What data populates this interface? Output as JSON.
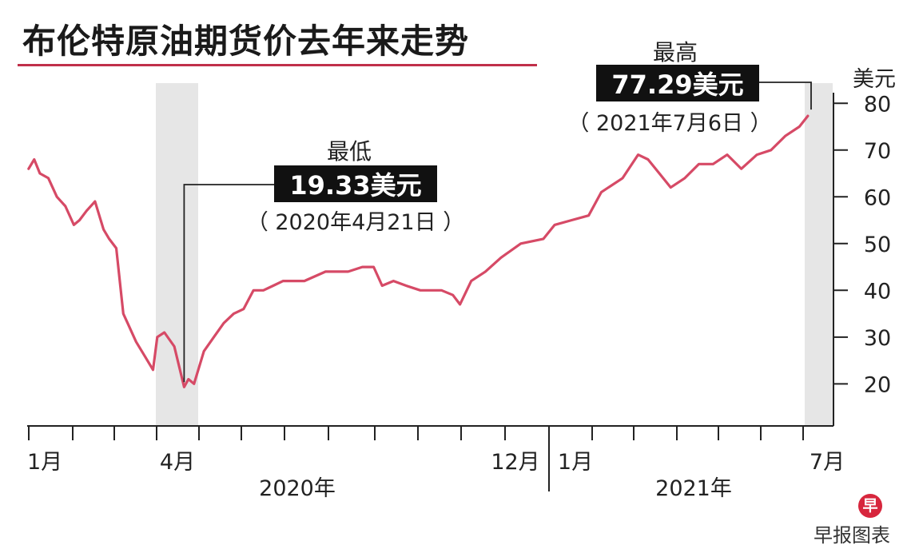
{
  "title": "布伦特原油期货价去年来走势",
  "credit": "早报图表",
  "logo_text": "早",
  "chart_data": {
    "type": "line",
    "title": "布伦特原油期货价去年来走势",
    "ylabel": "美元",
    "ylim": [
      11,
      85
    ],
    "yticks": [
      20,
      30,
      40,
      50,
      60,
      70,
      80
    ],
    "grid": false,
    "x_month_labels": [
      "1月",
      "4月",
      "12月",
      "1月",
      "7月"
    ],
    "x_year_labels": [
      "2020年",
      "2021年"
    ],
    "line_color": "#d64a66",
    "series": [
      {
        "x": [
          "2020-01-02",
          "2020-01-06",
          "2020-01-10",
          "2020-01-16",
          "2020-01-22",
          "2020-01-28",
          "2020-02-03",
          "2020-02-07",
          "2020-02-12",
          "2020-02-18",
          "2020-02-24",
          "2020-02-28",
          "2020-03-04",
          "2020-03-09",
          "2020-03-12",
          "2020-03-18",
          "2020-03-24",
          "2020-03-30",
          "2020-04-02",
          "2020-04-07",
          "2020-04-14",
          "2020-04-21",
          "2020-04-24",
          "2020-04-28",
          "2020-05-05",
          "2020-05-12",
          "2020-05-19",
          "2020-05-26",
          "2020-06-02",
          "2020-06-09",
          "2020-06-16",
          "2020-06-23",
          "2020-06-30",
          "2020-07-15",
          "2020-07-30",
          "2020-08-15",
          "2020-08-25",
          "2020-09-02",
          "2020-09-08",
          "2020-09-16",
          "2020-09-25",
          "2020-10-05",
          "2020-10-20",
          "2020-10-28",
          "2020-11-02",
          "2020-11-10",
          "2020-11-20",
          "2020-12-01",
          "2020-12-15",
          "2020-12-31",
          "2021-01-08",
          "2021-01-20",
          "2021-02-01",
          "2021-02-10",
          "2021-02-25",
          "2021-03-08",
          "2021-03-15",
          "2021-03-23",
          "2021-03-31",
          "2021-04-10",
          "2021-04-20",
          "2021-04-30",
          "2021-05-10",
          "2021-05-20",
          "2021-05-31",
          "2021-06-10",
          "2021-06-20",
          "2021-06-30",
          "2021-07-06"
        ],
        "values": [
          66,
          68,
          65,
          64,
          60,
          58,
          54,
          55,
          57,
          59,
          53,
          51,
          49,
          35,
          33,
          29,
          26,
          23,
          30,
          31,
          28,
          19.33,
          21,
          20,
          27,
          30,
          33,
          35,
          36,
          40,
          40,
          41,
          42,
          42,
          44,
          44,
          45,
          45,
          41,
          42,
          41,
          40,
          40,
          39,
          37,
          42,
          44,
          47,
          50,
          51,
          54,
          55,
          56,
          61,
          64,
          69,
          68,
          65,
          62,
          64,
          67,
          67,
          69,
          66,
          69,
          70,
          73,
          75,
          77.29
        ]
      }
    ],
    "annotations": [
      {
        "label": "最低",
        "value": "19.33美元",
        "date": "（ 2020年4月21日 ）"
      },
      {
        "label": "最高",
        "value": "77.29美元",
        "date": "（ 2021年7月6日 ）"
      }
    ]
  }
}
